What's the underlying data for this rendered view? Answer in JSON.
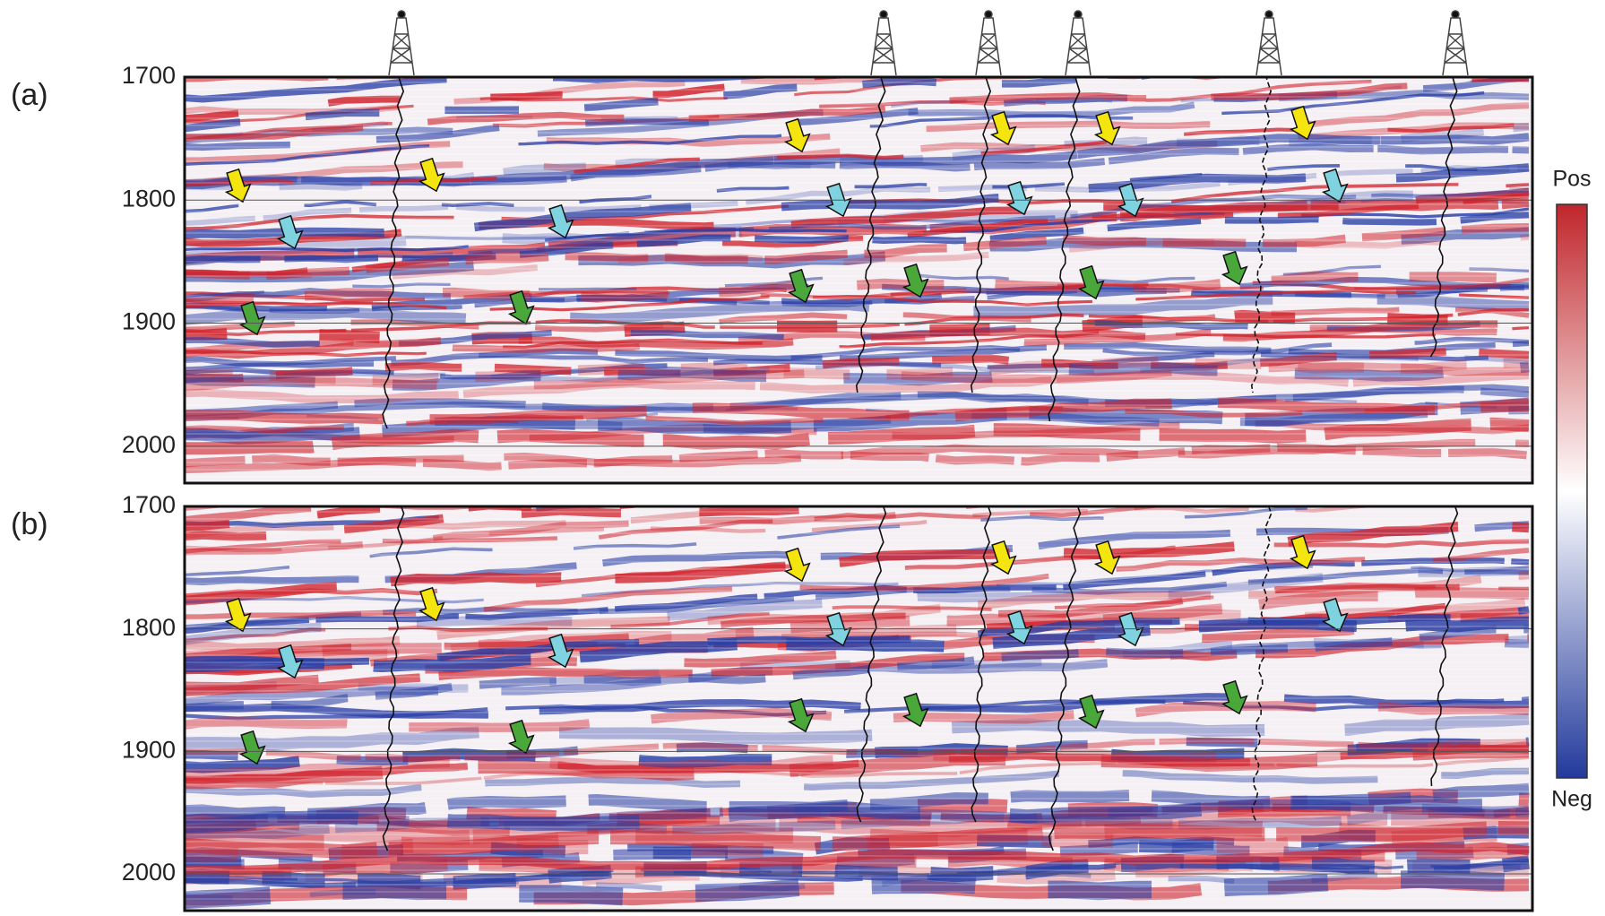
{
  "panels": [
    {
      "label": "(a)",
      "ylim": [
        1700,
        2030
      ],
      "ticks": [
        1700,
        1800,
        1900,
        2000
      ]
    },
    {
      "label": "(b)",
      "ylim": [
        1700,
        2030
      ],
      "ticks": [
        1700,
        1800,
        1900,
        2000
      ]
    }
  ],
  "colorbar": {
    "top_label": "Pos",
    "bottom_label": "Neg",
    "colors": [
      "#c0262b",
      "#ffffff",
      "#233a9c"
    ]
  }
}
